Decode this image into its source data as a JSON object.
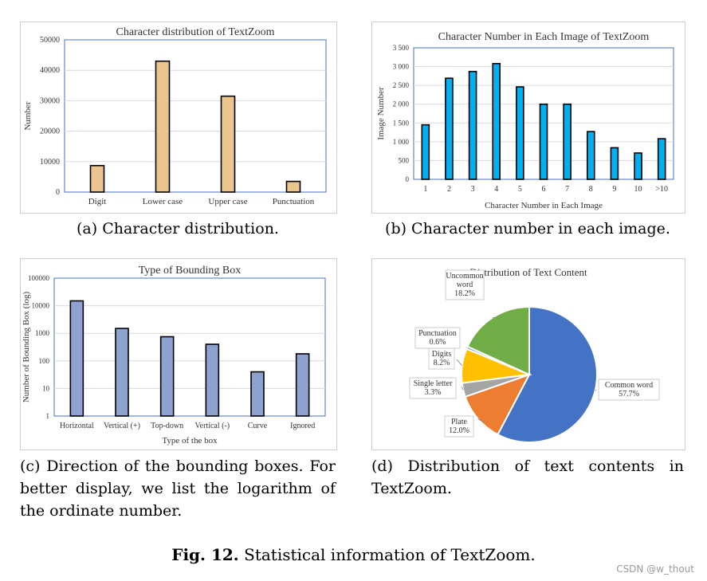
{
  "charts": [
    {
      "type": "bar",
      "title": "Character distribution of TextZoom",
      "xlabel": "",
      "ylabel": "Number",
      "categories": [
        "Digit",
        "Lower case",
        "Upper case",
        "Punctuation"
      ],
      "values": [
        8700,
        43000,
        31500,
        3500
      ],
      "ylim": [
        0,
        50000
      ],
      "yticks": [
        "0",
        "10000",
        "20000",
        "30000",
        "40000",
        "50000"
      ],
      "bar_color": "#EBC58E",
      "grid": true
    },
    {
      "type": "bar",
      "title": "Character Number in Each Image of TextZoom",
      "xlabel": "Character Number in Each Image",
      "ylabel": "Image Number",
      "categories": [
        "1",
        "2",
        "3",
        "4",
        "5",
        "6",
        "7",
        "8",
        "9",
        "10",
        ">10"
      ],
      "values": [
        1450,
        2690,
        2870,
        3080,
        2460,
        2000,
        2000,
        1270,
        840,
        700,
        1080
      ],
      "ylim": [
        0,
        3500
      ],
      "yticks": [
        "0",
        "500",
        "1 000",
        "1 500",
        "2 000",
        "2 500",
        "3 000",
        "3 500"
      ],
      "bar_color": "#00B0F0",
      "grid": true
    },
    {
      "type": "bar",
      "title": "Type of Bounding Box",
      "xlabel": "Type of the box",
      "ylabel": "Number of Bounding Box (log)",
      "categories": [
        "Horizontal",
        "Vertical (+)",
        "Top-down",
        "Vertical (-)",
        "Curve",
        "Ignored"
      ],
      "values": [
        15000,
        1500,
        750,
        400,
        40,
        180
      ],
      "ylim": [
        1,
        100000
      ],
      "log_scale": true,
      "yticks": [
        "1",
        "10",
        "100",
        "1000",
        "10000",
        "100000"
      ],
      "bar_color": "#8EA2CF",
      "grid": true
    },
    {
      "type": "pie",
      "title": "Distribution of Text Content",
      "slices": [
        {
          "label": "Common word",
          "pct_label": "57.7%",
          "value": 57.7,
          "color": "#4472C4"
        },
        {
          "label": "Plate",
          "pct_label": "12.0%",
          "value": 12.0,
          "color": "#ED7D31"
        },
        {
          "label": "Single letter",
          "pct_label": "3.3%",
          "value": 3.3,
          "color": "#A5A5A5"
        },
        {
          "label": "Digits",
          "pct_label": "8.2%",
          "value": 8.2,
          "color": "#FFC000"
        },
        {
          "label": "Punctuation",
          "pct_label": "0.6%",
          "value": 0.6,
          "color": "#5B9BD5"
        },
        {
          "label": "Uncommon word",
          "pct_label": "18.2%",
          "value": 18.2,
          "color": "#70AD47"
        }
      ]
    }
  ],
  "subcaptions": {
    "a": "(a) Character distribution.",
    "b": "(b) Character number in each image.",
    "c": "(c) Direction of the bounding boxes. For better display, we list the logarithm of the ordinate number.",
    "d": "(d) Distribution of text contents in TextZoom."
  },
  "figure_caption": {
    "label": "Fig. 12.",
    "text": "Statistical information of TextZoom."
  },
  "watermark": "CSDN @w_thout"
}
